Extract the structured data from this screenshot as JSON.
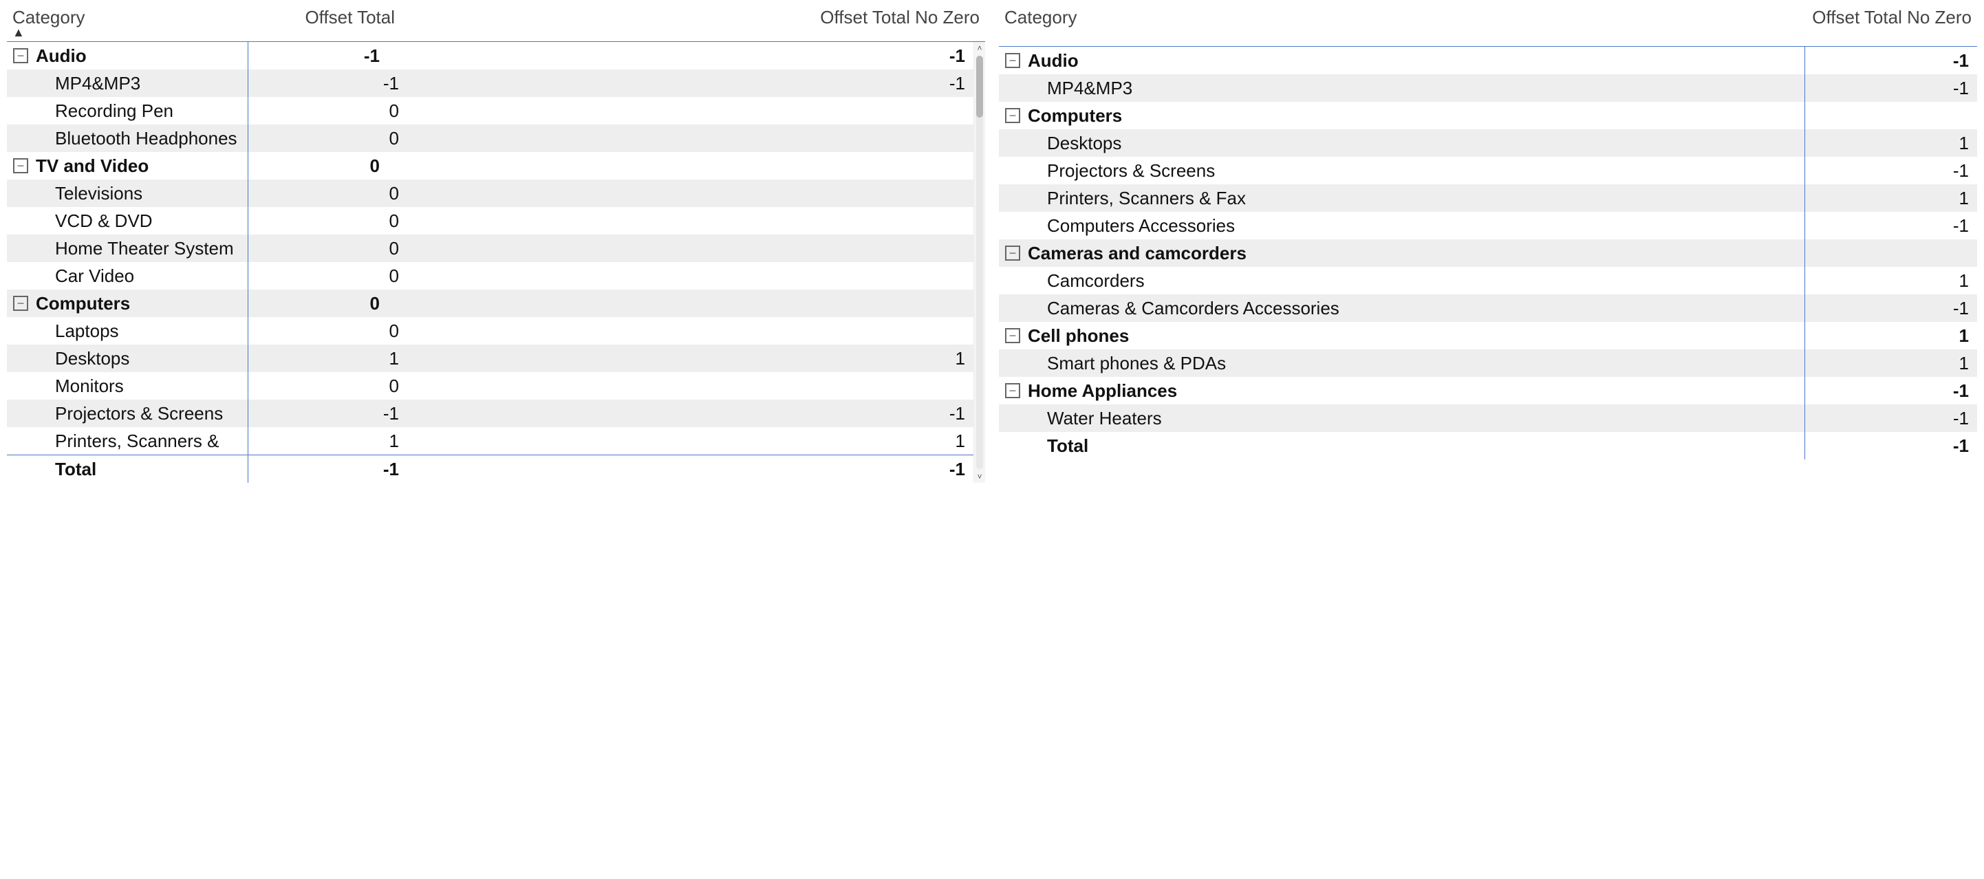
{
  "colors": {
    "border": "#4a78c8",
    "stripe": "#eeeeee",
    "text": "#111",
    "bg": "#ffffff"
  },
  "left": {
    "headers": {
      "category": "Category",
      "c1": "Offset Total",
      "c2": "Offset Total No Zero"
    },
    "rows": [
      {
        "type": "group",
        "expander": true,
        "label": "Audio",
        "c1": "-1",
        "c2": "-1",
        "stripe": false
      },
      {
        "type": "child",
        "label": "MP4&MP3",
        "c1": "-1",
        "c2": "-1",
        "stripe": true
      },
      {
        "type": "child",
        "label": "Recording Pen",
        "c1": "0",
        "c2": "",
        "stripe": false
      },
      {
        "type": "child",
        "label": "Bluetooth Headphones",
        "c1": "0",
        "c2": "",
        "stripe": true
      },
      {
        "type": "group",
        "expander": true,
        "label": "TV and Video",
        "c1": "0",
        "c2": "",
        "stripe": false
      },
      {
        "type": "child",
        "label": "Televisions",
        "c1": "0",
        "c2": "",
        "stripe": true
      },
      {
        "type": "child",
        "label": "VCD & DVD",
        "c1": "0",
        "c2": "",
        "stripe": false
      },
      {
        "type": "child",
        "label": "Home Theater System",
        "c1": "0",
        "c2": "",
        "stripe": true
      },
      {
        "type": "child",
        "label": "Car Video",
        "c1": "0",
        "c2": "",
        "stripe": false
      },
      {
        "type": "group",
        "expander": true,
        "label": "Computers",
        "c1": "0",
        "c2": "",
        "stripe": true
      },
      {
        "type": "child",
        "label": "Laptops",
        "c1": "0",
        "c2": "",
        "stripe": false
      },
      {
        "type": "child",
        "label": "Desktops",
        "c1": "1",
        "c2": "1",
        "stripe": true
      },
      {
        "type": "child",
        "label": "Monitors",
        "c1": "0",
        "c2": "",
        "stripe": false
      },
      {
        "type": "child",
        "label": "Projectors & Screens",
        "c1": "-1",
        "c2": "-1",
        "stripe": true
      },
      {
        "type": "child",
        "label": "Printers, Scanners &",
        "c1": "1",
        "c2": "1",
        "stripe": false
      }
    ],
    "total": {
      "label": "Total",
      "c1": "-1",
      "c2": "-1"
    }
  },
  "right": {
    "headers": {
      "category": "Category",
      "c2": "Offset Total No Zero"
    },
    "rows": [
      {
        "type": "group",
        "expander": true,
        "label": "Audio",
        "c2": "-1",
        "stripe": false
      },
      {
        "type": "child",
        "label": "MP4&MP3",
        "c2": "-1",
        "stripe": true
      },
      {
        "type": "group",
        "expander": true,
        "label": "Computers",
        "c2": "",
        "stripe": false
      },
      {
        "type": "child",
        "label": "Desktops",
        "c2": "1",
        "stripe": true
      },
      {
        "type": "child",
        "label": "Projectors & Screens",
        "c2": "-1",
        "stripe": false
      },
      {
        "type": "child",
        "label": "Printers, Scanners & Fax",
        "c2": "1",
        "stripe": true
      },
      {
        "type": "child",
        "label": "Computers Accessories",
        "c2": "-1",
        "stripe": false
      },
      {
        "type": "group",
        "expander": true,
        "label": "Cameras and camcorders",
        "c2": "",
        "stripe": true
      },
      {
        "type": "child",
        "label": "Camcorders",
        "c2": "1",
        "stripe": false
      },
      {
        "type": "child",
        "label": "Cameras & Camcorders Accessories",
        "c2": "-1",
        "stripe": true
      },
      {
        "type": "group",
        "expander": true,
        "label": "Cell phones",
        "c2": "1",
        "stripe": false
      },
      {
        "type": "child",
        "label": "Smart phones & PDAs",
        "c2": "1",
        "stripe": true
      },
      {
        "type": "group",
        "expander": true,
        "label": "Home Appliances",
        "c2": "-1",
        "stripe": false
      },
      {
        "type": "child",
        "label": "Water Heaters",
        "c2": "-1",
        "stripe": true
      },
      {
        "type": "total",
        "label": "Total",
        "c2": "-1",
        "stripe": false
      }
    ]
  }
}
